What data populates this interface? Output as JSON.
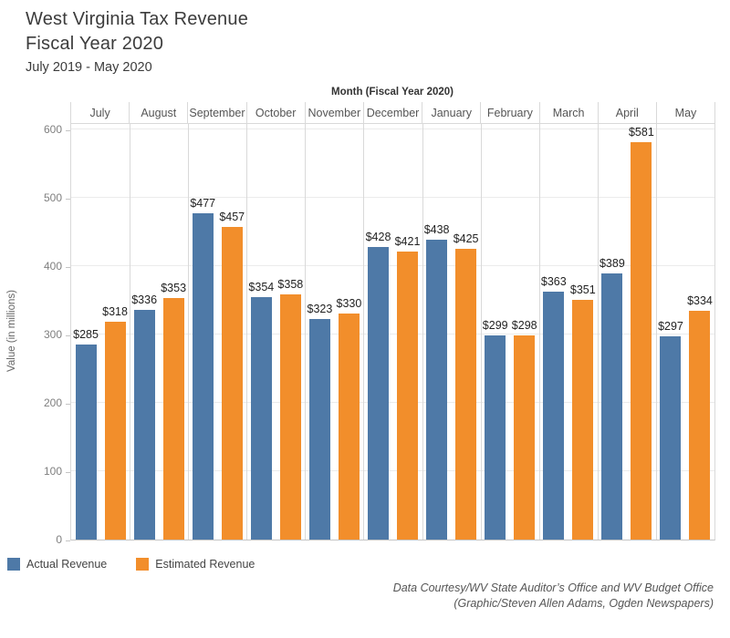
{
  "title": {
    "line1": "West Virginia Tax Revenue",
    "line2": "Fiscal Year 2020",
    "subtitle": "July 2019 - May 2020"
  },
  "chart_data": {
    "type": "bar",
    "title": "Month (Fiscal Year 2020)",
    "xlabel": "Month (Fiscal Year 2020)",
    "ylabel": "Value (in millions)",
    "ylim": [
      0,
      600
    ],
    "yticks": [
      0,
      100,
      200,
      300,
      400,
      500,
      600
    ],
    "grid": true,
    "legend_position": "bottom-left",
    "value_label_prefix": "$",
    "categories": [
      "July",
      "August",
      "September",
      "October",
      "November",
      "December",
      "January",
      "February",
      "March",
      "April",
      "May"
    ],
    "series": [
      {
        "name": "Actual Revenue",
        "color": "#4E79A7",
        "values": [
          285,
          336,
          477,
          354,
          323,
          428,
          438,
          299,
          363,
          389,
          297
        ]
      },
      {
        "name": "Estimated Revenue",
        "color": "#F28E2B",
        "values": [
          318,
          353,
          457,
          358,
          330,
          421,
          425,
          298,
          351,
          581,
          334
        ]
      }
    ]
  },
  "footer": {
    "line1": "Data Courtesy/WV State Auditor’s Office and WV Budget Office",
    "line2": "(Graphic/Steven Allen Adams, Ogden Newspapers)"
  }
}
